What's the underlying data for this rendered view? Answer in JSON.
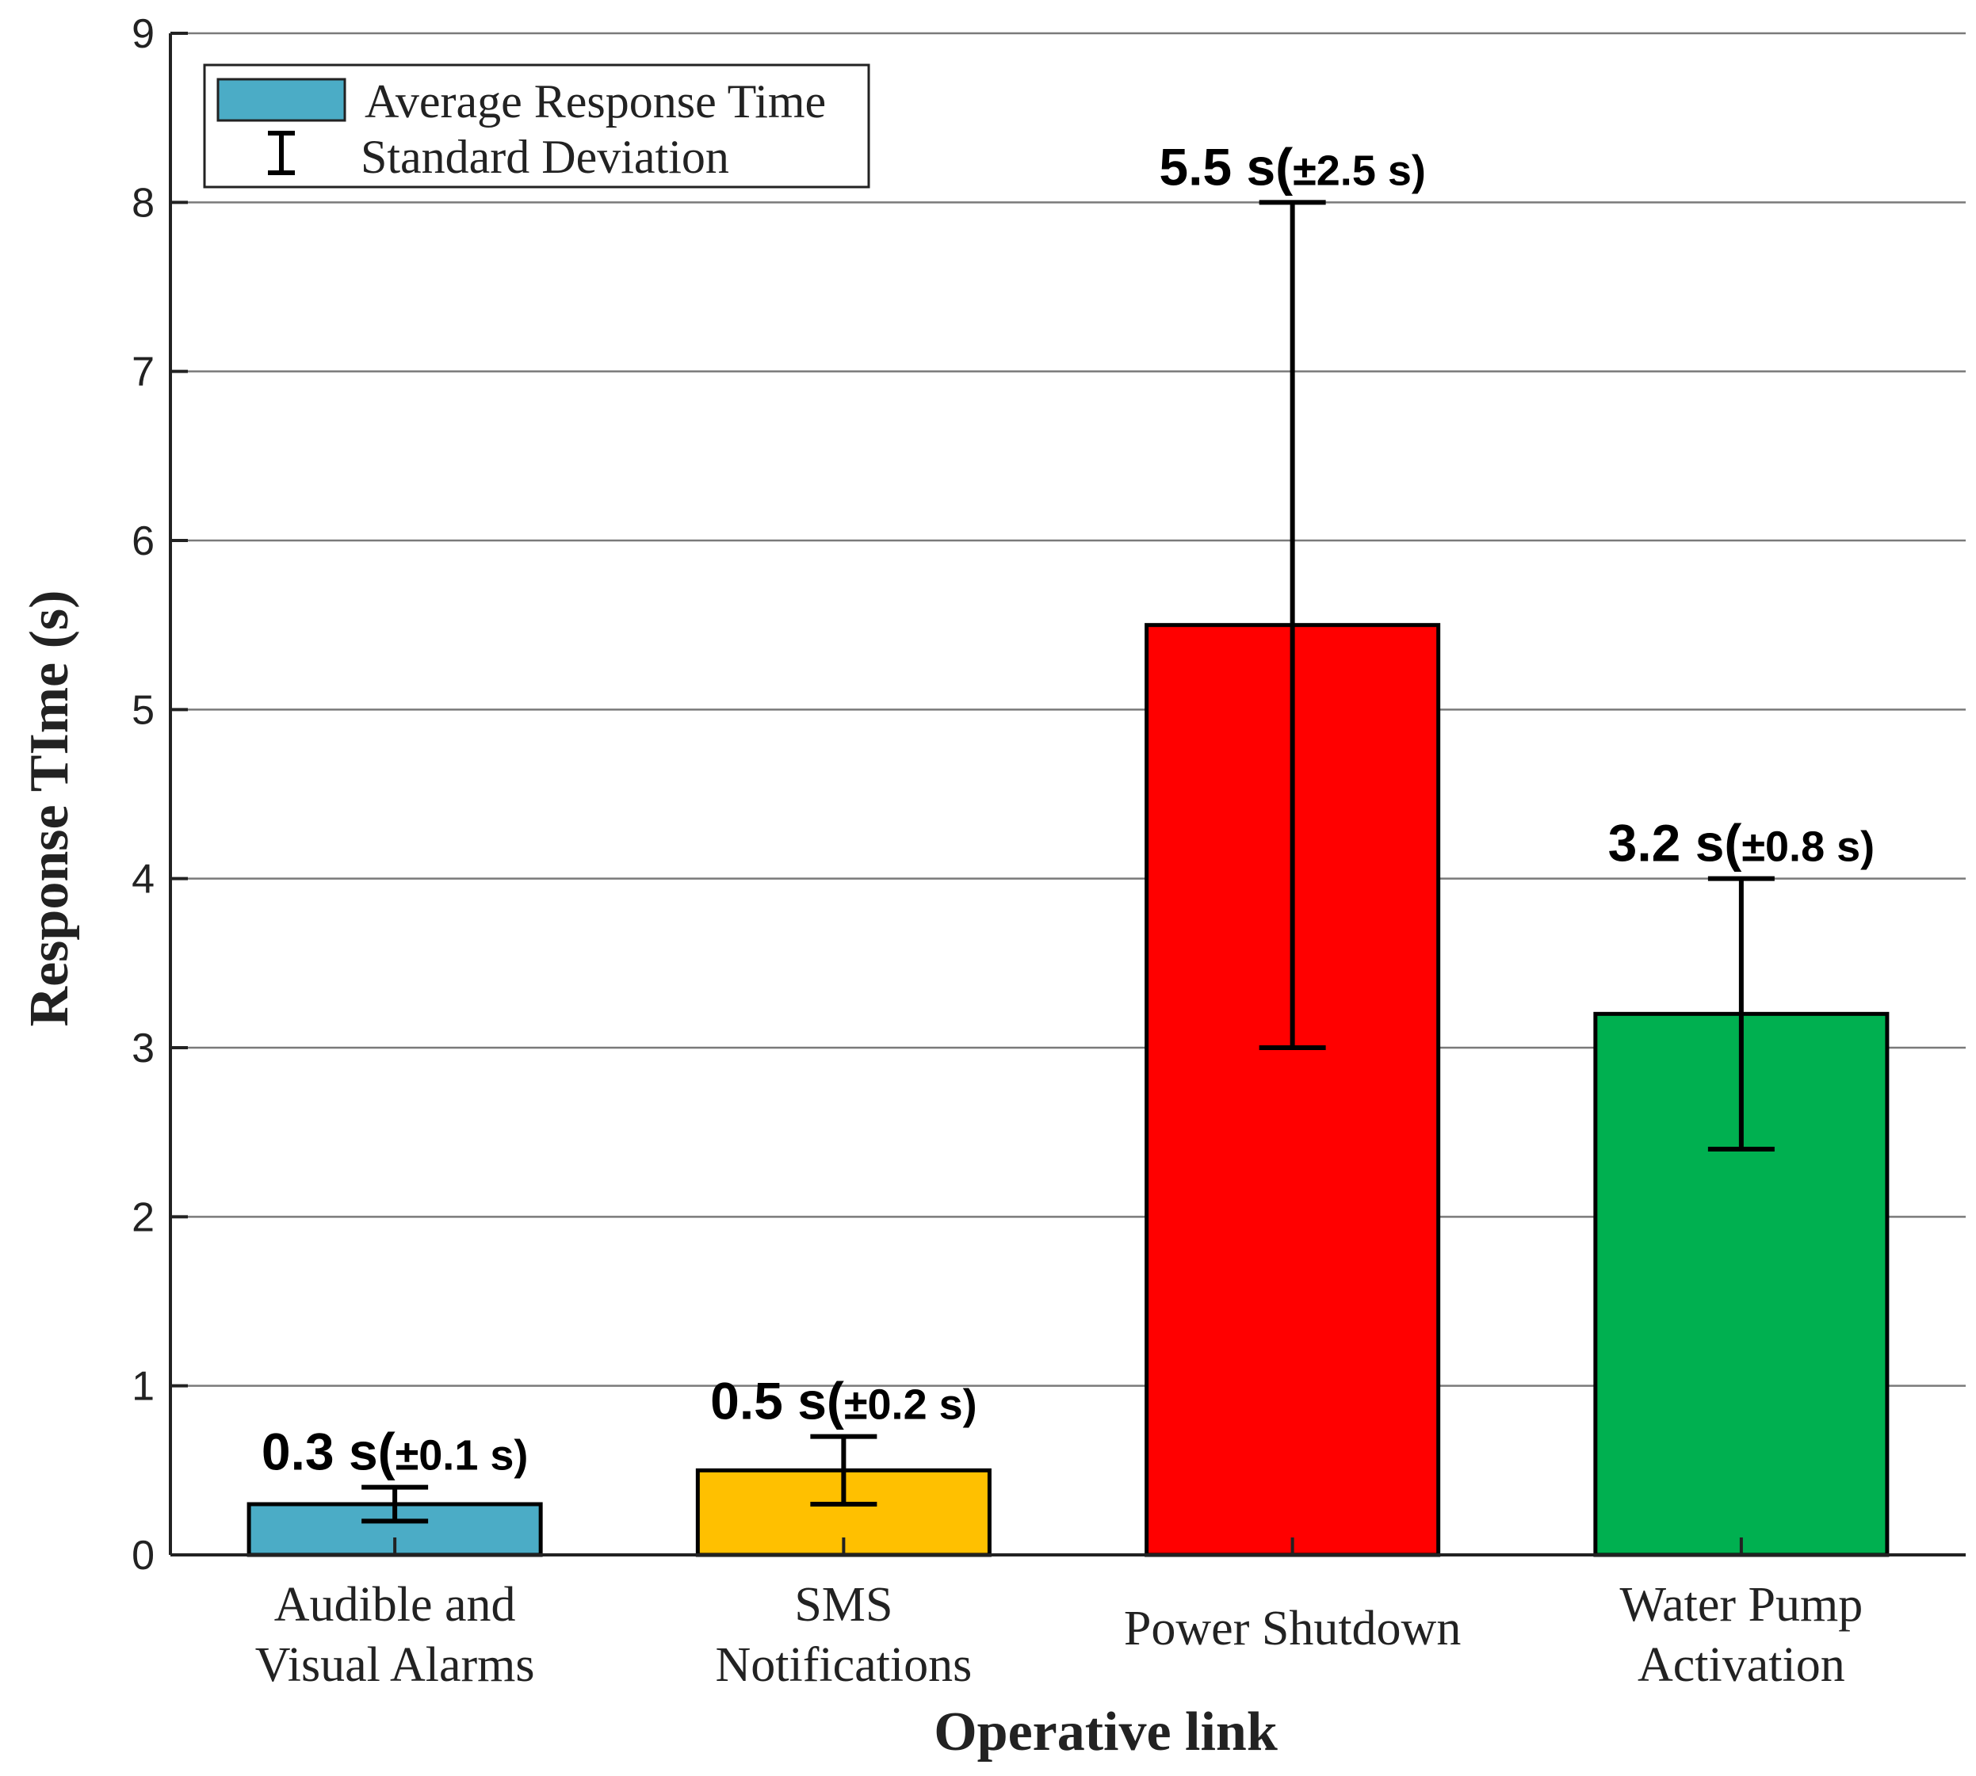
{
  "chart_data": {
    "type": "bar",
    "title": "",
    "xlabel": "Operative link",
    "ylabel": "Response TIme (s)",
    "ylim": [
      0,
      9
    ],
    "yticks": [
      0,
      1,
      2,
      3,
      4,
      5,
      6,
      7,
      8,
      9
    ],
    "grid": true,
    "legend_position": "top-left",
    "legend": {
      "bar_entry": "Average Response Time",
      "error_entry": "Standard Deviation"
    },
    "categories": [
      [
        "Audible and",
        "Visual Alarms"
      ],
      [
        "SMS",
        "Notifications"
      ],
      [
        "Power Shutdown"
      ],
      [
        "Water Pump",
        "Activation"
      ]
    ],
    "values": [
      0.3,
      0.5,
      5.5,
      3.2
    ],
    "std": [
      0.1,
      0.2,
      2.5,
      0.8
    ],
    "colors": [
      "#4bacc6",
      "#ffc000",
      "#ff0000",
      "#00b050"
    ],
    "data_labels": [
      {
        "main": "0.3 s(",
        "sd": "±0.1 s)"
      },
      {
        "main": "0.5 s(",
        "sd": "±0.2 s)"
      },
      {
        "main": "5.5 s(",
        "sd": "±2.5 s)"
      },
      {
        "main": "3.2 s(",
        "sd": "±0.8 s)"
      }
    ],
    "legend_colors": {
      "bar": "#4bacc6"
    }
  }
}
